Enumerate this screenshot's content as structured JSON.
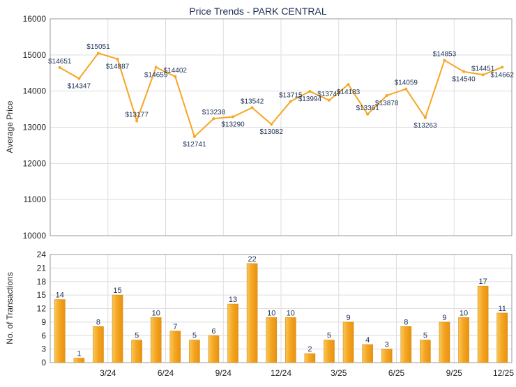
{
  "chart_data": [
    {
      "type": "line",
      "title": "Price Trends - PARK CENTRAL",
      "ylabel": "Average Price",
      "ylim": [
        10000,
        16000
      ],
      "yticks": [
        10000,
        11000,
        12000,
        13000,
        14000,
        15000,
        16000
      ],
      "grid": true,
      "line_color": "#f5a623",
      "label_color": "#1c2f55",
      "series": [
        {
          "values": [
            14651,
            14347,
            15051,
            14887,
            13177,
            14659,
            14402,
            12741,
            13238,
            13290,
            13542,
            13082,
            13715,
            13994,
            13747,
            14183,
            13361,
            13878,
            14059,
            13263,
            14853,
            14540,
            14451,
            14662
          ],
          "labels": [
            "$14651",
            "$14347",
            "$15051",
            "$14887",
            "$13177",
            "$14659",
            "$14402",
            "$12741",
            "$13238",
            "$13290",
            "$13542",
            "$13082",
            "$13715",
            "$13994",
            "$13747",
            "$14183",
            "$13361",
            "$13878",
            "$14059",
            "$13263",
            "$14853",
            "$14540",
            "$14451",
            "$14662"
          ]
        }
      ]
    },
    {
      "type": "bar",
      "ylabel": "No. of Transactions",
      "ylim": [
        0,
        24
      ],
      "yticks": [
        0,
        3,
        6,
        9,
        12,
        15,
        18,
        21,
        24
      ],
      "grid": true,
      "bar_color": "#f5b02e",
      "label_color": "#1c2f55",
      "x_tick_labels": [
        "3/24",
        "6/24",
        "9/24",
        "12/24",
        "3/25",
        "6/25",
        "9/25",
        "12/25"
      ],
      "values": [
        14,
        1,
        8,
        15,
        5,
        10,
        7,
        5,
        6,
        13,
        22,
        10,
        10,
        2,
        5,
        9,
        4,
        3,
        8,
        5,
        9,
        10,
        17,
        11
      ]
    }
  ]
}
